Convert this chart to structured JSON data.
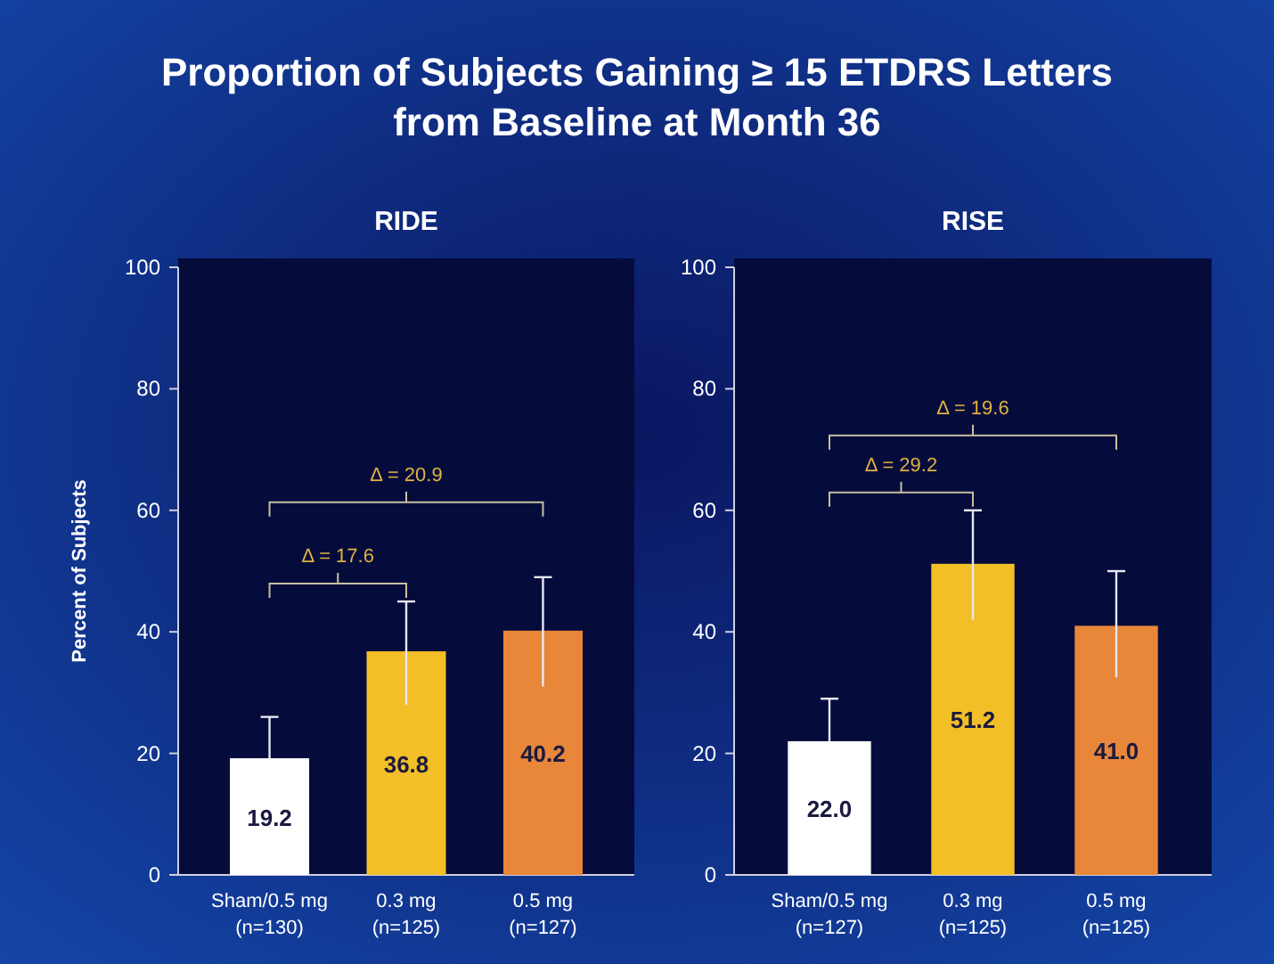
{
  "chart_data": [
    {
      "type": "bar",
      "title": "Proportion of Subjects Gaining ≥ 15 ETDRS Letters\nfrom Baseline at Month 36",
      "subtitle": "RIDE",
      "ylabel": "Percent of Subjects",
      "categories": [
        "Sham/0.5 mg\n(n=130)",
        "0.3 mg\n(n=125)",
        "0.5 mg\n(n=127)"
      ],
      "values": [
        19.2,
        36.8,
        40.2
      ],
      "colors": [
        "#ffffff",
        "#f2bf26",
        "#e8863a"
      ],
      "errors": [
        [
          19.2,
          26
        ],
        [
          28,
          45
        ],
        [
          31,
          49
        ]
      ],
      "value_labels": [
        "19.2",
        "36.8",
        "40.2"
      ],
      "ylim": [
        0,
        100
      ],
      "yticks": [
        0,
        20,
        40,
        60,
        80,
        100
      ],
      "grid": false,
      "annotations": [
        "Δ = 17.6",
        "Δ = 20.9"
      ]
    },
    {
      "type": "bar",
      "subtitle": "RISE",
      "categories": [
        "Sham/0.5 mg\n(n=127)",
        "0.3 mg\n(n=125)",
        "0.5 mg\n(n=125)"
      ],
      "values": [
        22.0,
        51.2,
        41.0
      ],
      "colors": [
        "#ffffff",
        "#f2bf26",
        "#e8863a"
      ],
      "errors": [
        [
          22,
          29
        ],
        [
          42,
          60
        ],
        [
          32.5,
          50
        ]
      ],
      "value_labels": [
        "22.0",
        "51.2",
        "41.0"
      ],
      "ylim": [
        0,
        100
      ],
      "yticks": [
        0,
        20,
        40,
        60,
        80,
        100
      ],
      "grid": false,
      "annotations": [
        "Δ = 29.2",
        "Δ = 19.6"
      ]
    }
  ]
}
